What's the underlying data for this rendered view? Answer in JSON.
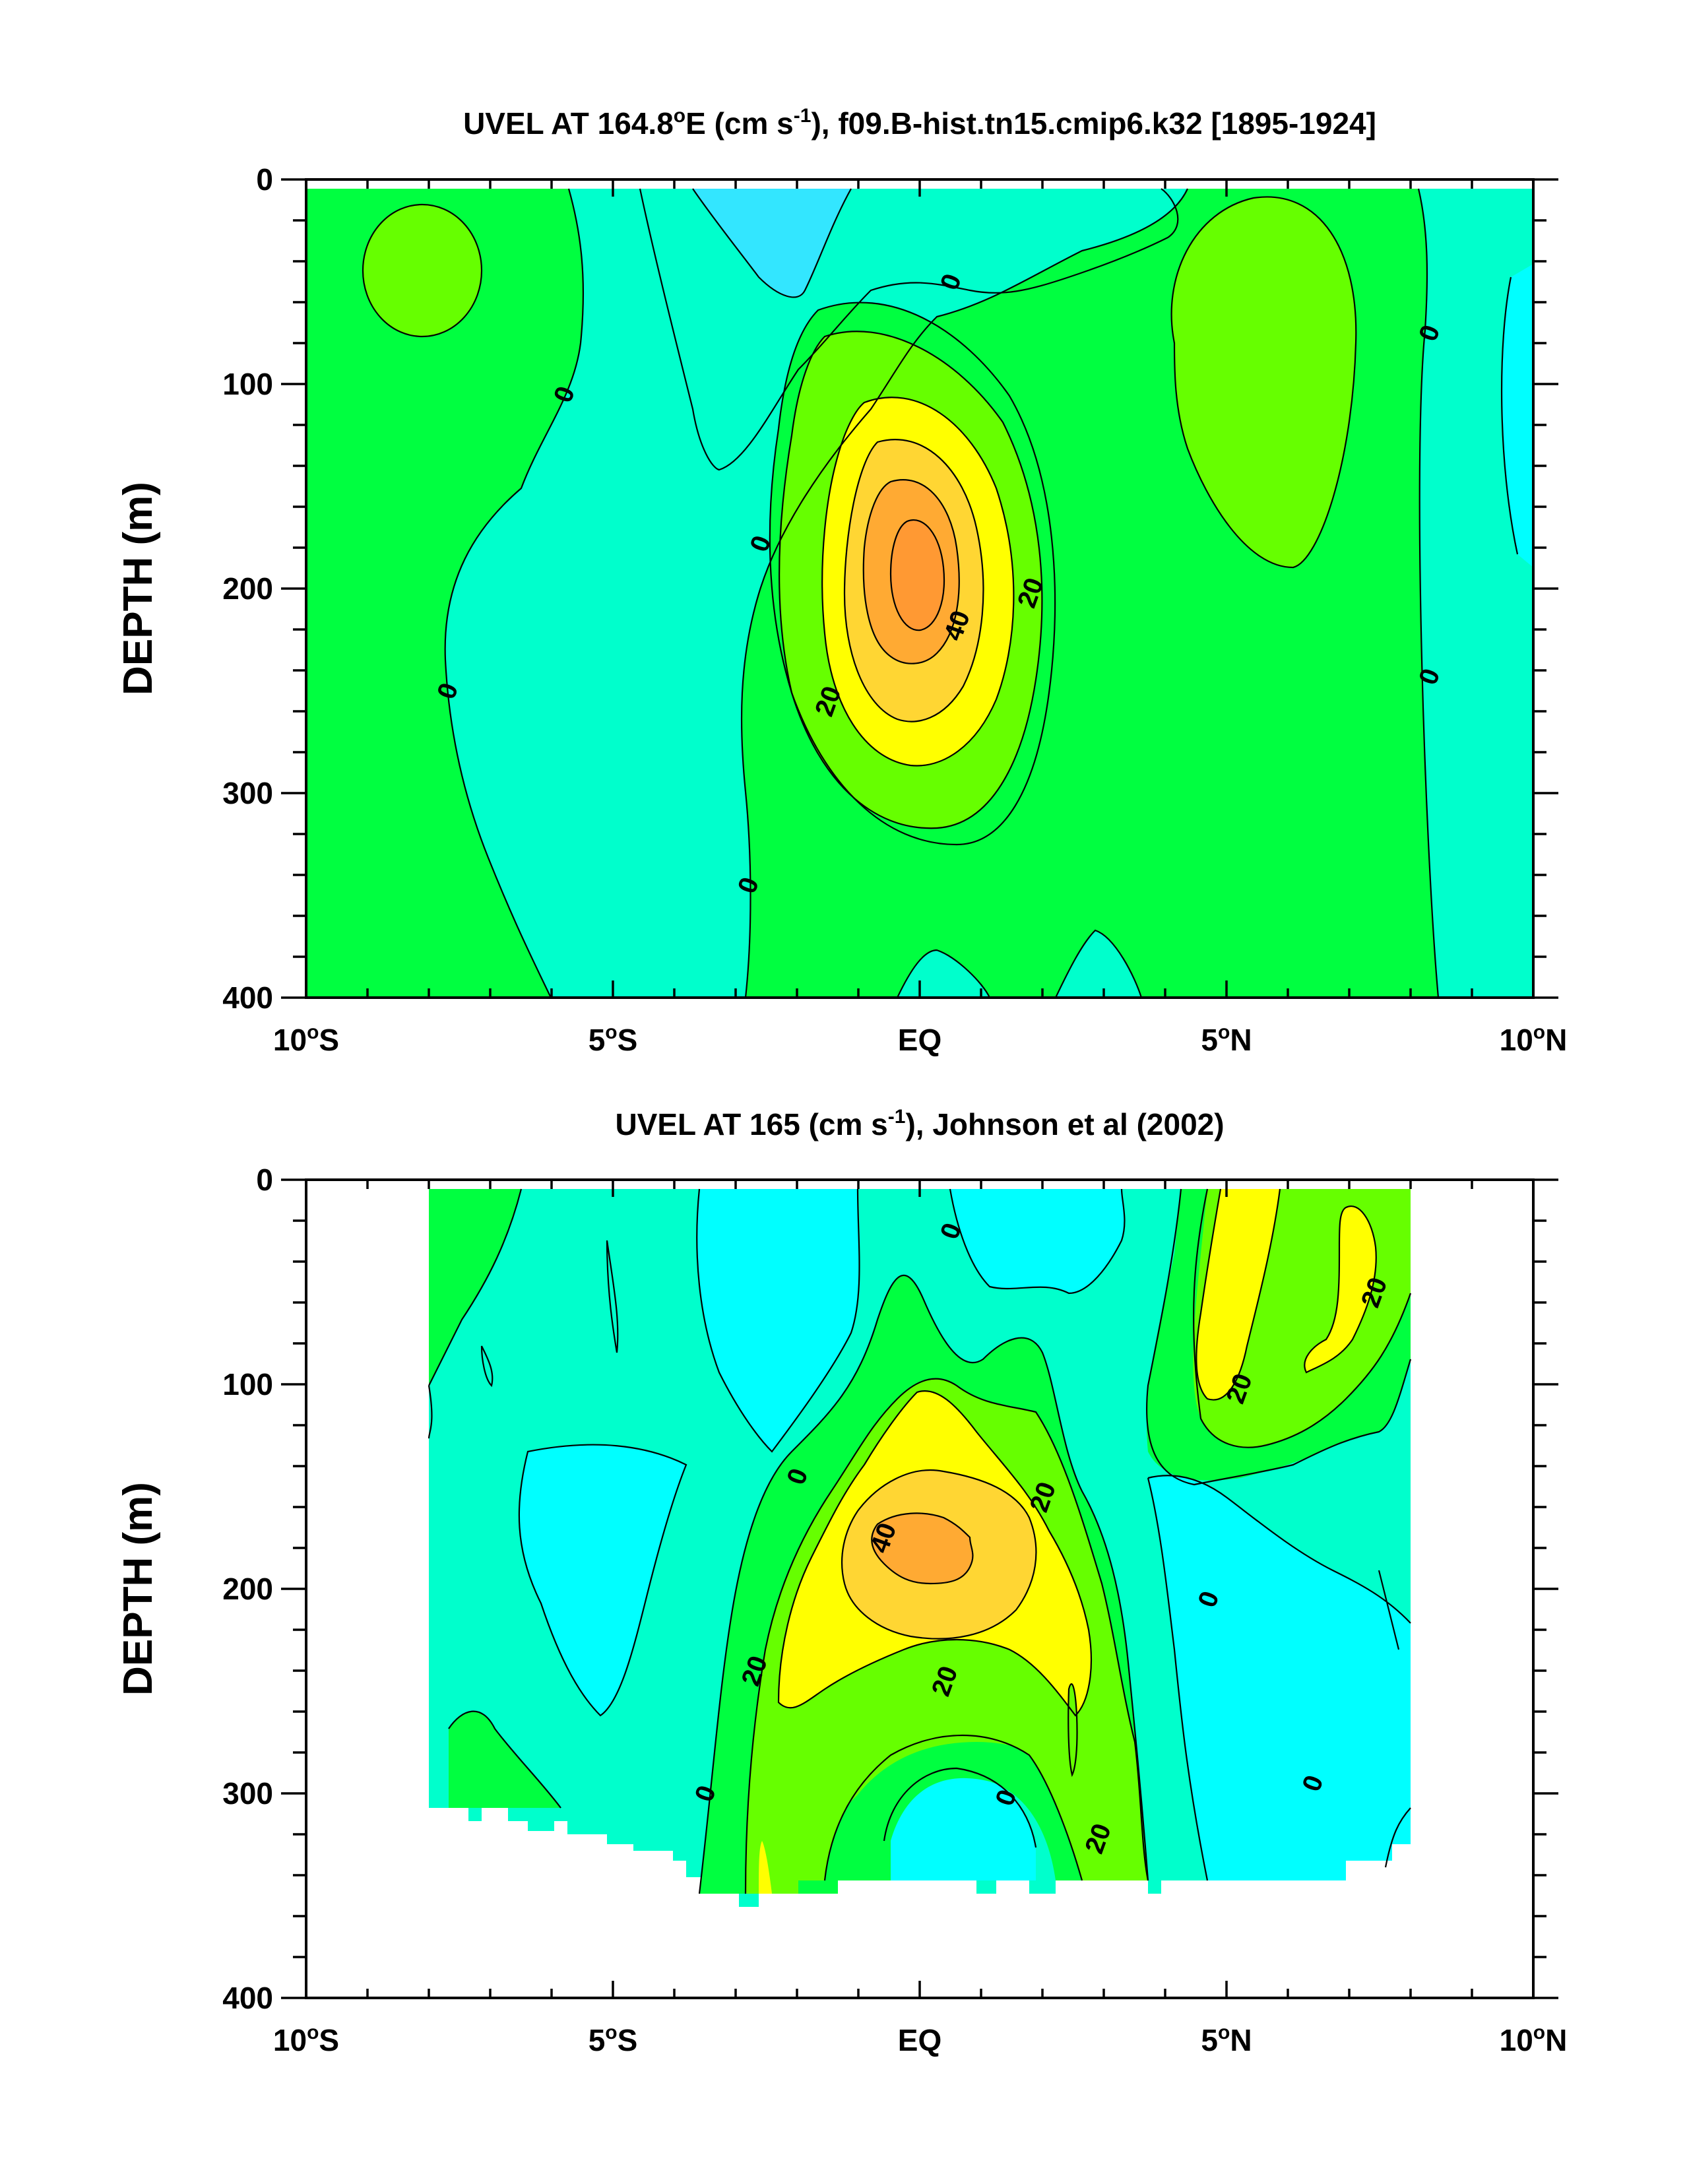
{
  "chart_data": [
    {
      "type": "contour",
      "title": "UVEL AT 164.8°E (cm s-1), f09.B-hist.tn15.cmip6.k32 [1895-1924]",
      "title_parts": {
        "a": "UVEL AT 164.8",
        "deg": "o",
        "b": "E (cm s",
        "sup": "-1",
        "c": "), f09.B-hist.tn15.cmip6.k32 [1895-1924]"
      },
      "ylabel": "DEPTH (m)",
      "xlim": [
        -10,
        10
      ],
      "ylim": [
        0,
        400
      ],
      "y_inverted": true,
      "x_ticks": [
        {
          "value": -10,
          "num": "10",
          "deg": "o",
          "hemi": "S"
        },
        {
          "value": -5,
          "num": "5",
          "deg": "o",
          "hemi": "S"
        },
        {
          "value": 0,
          "num": "EQ",
          "deg": "",
          "hemi": ""
        },
        {
          "value": 5,
          "num": "5",
          "deg": "o",
          "hemi": "N"
        },
        {
          "value": 10,
          "num": "10",
          "deg": "o",
          "hemi": "N"
        }
      ],
      "y_ticks": [
        {
          "value": 0,
          "label": "0"
        },
        {
          "value": 100,
          "label": "100"
        },
        {
          "value": 200,
          "label": "200"
        },
        {
          "value": 300,
          "label": "300"
        },
        {
          "value": 400,
          "label": "400"
        }
      ],
      "contour_levels": [
        -10,
        0,
        10,
        20,
        30,
        40,
        50
      ],
      "fill_colors": {
        "below_-10": "#33e6ff",
        "-10_0": "#00ffff",
        "0_10": "#00ffcc",
        "10_20": "#00ff40",
        "20_30": "#66ff00",
        "30_40": "#ffff00",
        "40_50": "#ffd633",
        "50_60": "#ffaa33",
        "60_plus": "#ff9933"
      },
      "core": {
        "lat": 0,
        "depth": 180,
        "max_cm_s": 60
      },
      "contour_labels": [
        {
          "text": "0",
          "lat": -5.8,
          "depth": 105
        },
        {
          "text": "0",
          "lat": -7.7,
          "depth": 250
        },
        {
          "text": "0",
          "lat": -2.6,
          "depth": 178
        },
        {
          "text": "0",
          "lat": -2.8,
          "depth": 345
        },
        {
          "text": "0",
          "lat": 0.5,
          "depth": 50
        },
        {
          "text": "0",
          "lat": 8.3,
          "depth": 75
        },
        {
          "text": "0",
          "lat": 8.3,
          "depth": 243
        },
        {
          "text": "20",
          "lat": 1.8,
          "depth": 202
        },
        {
          "text": "20",
          "lat": -1.5,
          "depth": 255
        },
        {
          "text": "40",
          "lat": 0.6,
          "depth": 218
        }
      ]
    },
    {
      "type": "contour",
      "title": "UVEL AT 165 (cm s-1), Johnson et al (2002)",
      "title_parts": {
        "a": "UVEL AT 165 (cm s",
        "sup": "-1",
        "c": "), Johnson et al (2002)"
      },
      "ylabel": "DEPTH (m)",
      "xlim": [
        -10,
        10
      ],
      "ylim": [
        0,
        400
      ],
      "y_inverted": true,
      "data_extent_lat": [
        -8,
        8
      ],
      "x_ticks": [
        {
          "value": -10,
          "num": "10",
          "deg": "o",
          "hemi": "S"
        },
        {
          "value": -5,
          "num": "5",
          "deg": "o",
          "hemi": "S"
        },
        {
          "value": 0,
          "num": "EQ",
          "deg": "",
          "hemi": ""
        },
        {
          "value": 5,
          "num": "5",
          "deg": "o",
          "hemi": "N"
        },
        {
          "value": 10,
          "num": "10",
          "deg": "o",
          "hemi": "N"
        }
      ],
      "y_ticks": [
        {
          "value": 0,
          "label": "0"
        },
        {
          "value": 100,
          "label": "100"
        },
        {
          "value": 200,
          "label": "200"
        },
        {
          "value": 300,
          "label": "300"
        },
        {
          "value": 400,
          "label": "400"
        }
      ],
      "contour_levels": [
        -10,
        0,
        10,
        20,
        30,
        40
      ],
      "fill_colors": {
        "-10_0": "#00ffff",
        "0_10": "#00ffcc",
        "10_20": "#00ff40",
        "20_30": "#66ff00",
        "30_40": "#ffff00",
        "40_50": "#ffd633",
        "50_plus": "#ffaa33"
      },
      "core": {
        "lat": 0,
        "depth": 185,
        "max_cm_s": 50
      },
      "contour_labels": [
        {
          "text": "0",
          "lat": 0.5,
          "depth": 25
        },
        {
          "text": "0",
          "lat": -2,
          "depth": 145
        },
        {
          "text": "0",
          "lat": -3.5,
          "depth": 300
        },
        {
          "text": "0",
          "lat": 1.4,
          "depth": 302
        },
        {
          "text": "0",
          "lat": 4.7,
          "depth": 205
        },
        {
          "text": "0",
          "lat": 6.4,
          "depth": 295
        },
        {
          "text": "20",
          "lat": 7.4,
          "depth": 55
        },
        {
          "text": "20",
          "lat": 5.2,
          "depth": 102
        },
        {
          "text": "20",
          "lat": 2,
          "depth": 155
        },
        {
          "text": "20",
          "lat": -2.7,
          "depth": 240
        },
        {
          "text": "20",
          "lat": 0.4,
          "depth": 245
        },
        {
          "text": "20",
          "lat": 2.9,
          "depth": 322
        },
        {
          "text": "40",
          "lat": -0.6,
          "depth": 175
        }
      ]
    }
  ]
}
